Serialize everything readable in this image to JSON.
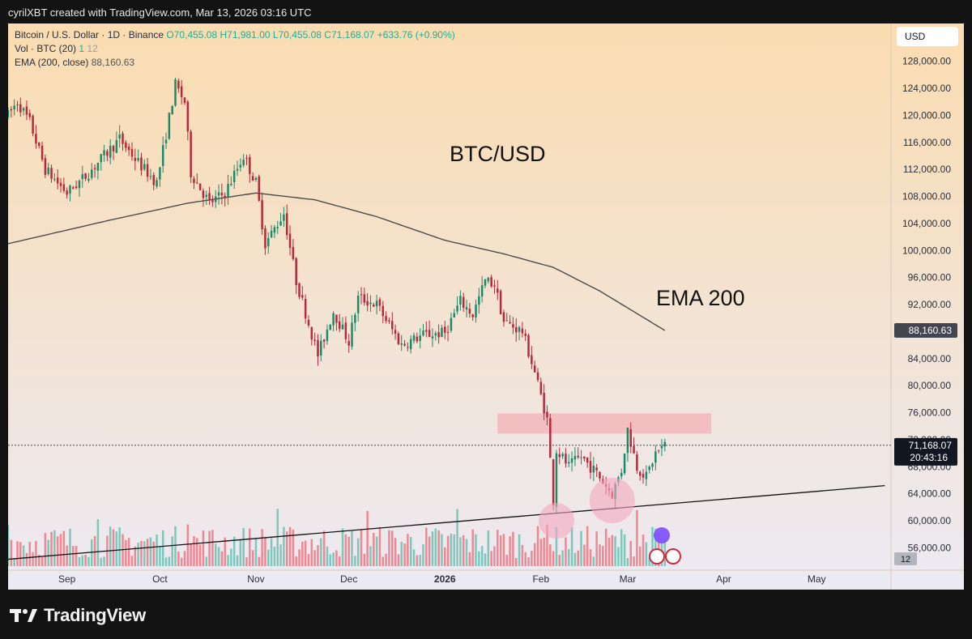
{
  "caption": "cyrilXBT created with TradingView.com, Mar 13, 2026 03:16 UTC",
  "legend": {
    "symbol": "Bitcoin / U.S. Dollar · 1D · Binance",
    "o": "O70,455.08",
    "h": "H71,981.00",
    "l": "L70,455.08",
    "c": "C71,168.07",
    "chg": "+633.76 (+0.90%)",
    "vol_label": "Vol · BTC (20)",
    "vol_val1": "1",
    "vol_val2": "12",
    "ema_label": "EMA (200, close)",
    "ema_val": "88,160.63"
  },
  "currency_label": "USD",
  "footer_brand": "TradingView",
  "colors": {
    "up": "#22ab94",
    "down": "#f23645",
    "candle_up": "#1b8a6b",
    "candle_down": "#b8283a",
    "ema": "#4b4b4b",
    "zone": "#f3a3ab",
    "circle": "#f4a7bf",
    "bg_top": "#fadcb0",
    "bg_bottom": "#eceaf3"
  },
  "chart_data": {
    "type": "candlestick",
    "title": "BTC/USD",
    "annotations": [
      "BTC/USD",
      "EMA 200"
    ],
    "x_ticks": [
      "Sep",
      "Oct",
      "Nov",
      "Dec",
      "2026",
      "Feb",
      "Mar",
      "Apr",
      "May"
    ],
    "y_ticks": [
      "128,000.00",
      "124,000.00",
      "120,000.00",
      "116,000.00",
      "112,000.00",
      "108,000.00",
      "104,000.00",
      "100,000.00",
      "96,000.00",
      "92,000.00",
      "84,000.00",
      "80,000.00",
      "76,000.00",
      "72,000.00",
      "68,000.00",
      "64,000.00",
      "60,000.00",
      "56,000.00"
    ],
    "ylim": [
      53000,
      131000
    ],
    "x_range": [
      "2025-08-13",
      "2026-05-25"
    ],
    "last_price": "71,168.07",
    "countdown": "20:43:16",
    "ema_value_label": "88,160.63",
    "volume_scale_label": "12",
    "resistance_zone": {
      "from": "2026-01-18",
      "to": "2026-03-28",
      "low": 72900,
      "high": 75900
    },
    "support_trendline": [
      {
        "date": "2025-08-13",
        "value": 54300
      },
      {
        "date": "2026-05-23",
        "value": 65200
      }
    ],
    "highlight_lows": [
      {
        "date": "2026-02-06",
        "value": 60000
      },
      {
        "date": "2026-02-24",
        "value": 63000
      }
    ],
    "ema_anchors": [
      {
        "date": "2025-08-13",
        "value": 101000
      },
      {
        "date": "2025-09-15",
        "value": 104500
      },
      {
        "date": "2025-10-10",
        "value": 107000
      },
      {
        "date": "2025-11-01",
        "value": 108500
      },
      {
        "date": "2025-11-20",
        "value": 107500
      },
      {
        "date": "2025-12-10",
        "value": 105000
      },
      {
        "date": "2026-01-01",
        "value": 101500
      },
      {
        "date": "2026-01-20",
        "value": 99500
      },
      {
        "date": "2026-02-05",
        "value": 97500
      },
      {
        "date": "2026-02-20",
        "value": 94000
      },
      {
        "date": "2026-03-13",
        "value": 88160.63
      }
    ],
    "price_anchors": [
      {
        "date": "2025-08-13",
        "value": 120000
      },
      {
        "date": "2025-08-16",
        "value": 122000
      },
      {
        "date": "2025-08-20",
        "value": 119000
      },
      {
        "date": "2025-08-25",
        "value": 112000
      },
      {
        "date": "2025-09-01",
        "value": 108500
      },
      {
        "date": "2025-09-07",
        "value": 111000
      },
      {
        "date": "2025-09-18",
        "value": 116500
      },
      {
        "date": "2025-09-24",
        "value": 113000
      },
      {
        "date": "2025-09-30",
        "value": 110000
      },
      {
        "date": "2025-10-06",
        "value": 124500
      },
      {
        "date": "2025-10-09",
        "value": 122000
      },
      {
        "date": "2025-10-11",
        "value": 111500
      },
      {
        "date": "2025-10-17",
        "value": 107000
      },
      {
        "date": "2025-10-22",
        "value": 108500
      },
      {
        "date": "2025-10-28",
        "value": 114000
      },
      {
        "date": "2025-11-01",
        "value": 110000
      },
      {
        "date": "2025-11-04",
        "value": 101000
      },
      {
        "date": "2025-11-10",
        "value": 105500
      },
      {
        "date": "2025-11-14",
        "value": 95500
      },
      {
        "date": "2025-11-21",
        "value": 84500
      },
      {
        "date": "2025-11-26",
        "value": 91000
      },
      {
        "date": "2025-12-01",
        "value": 86500
      },
      {
        "date": "2025-12-04",
        "value": 93000
      },
      {
        "date": "2025-12-10",
        "value": 92000
      },
      {
        "date": "2025-12-18",
        "value": 86000
      },
      {
        "date": "2025-12-25",
        "value": 87500
      },
      {
        "date": "2026-01-01",
        "value": 87800
      },
      {
        "date": "2026-01-06",
        "value": 92500
      },
      {
        "date": "2026-01-10",
        "value": 90500
      },
      {
        "date": "2026-01-14",
        "value": 95500
      },
      {
        "date": "2026-01-17",
        "value": 95000
      },
      {
        "date": "2026-01-20",
        "value": 89500
      },
      {
        "date": "2026-01-26",
        "value": 88000
      },
      {
        "date": "2026-01-30",
        "value": 82000
      },
      {
        "date": "2026-02-03",
        "value": 75000
      },
      {
        "date": "2026-02-05",
        "value": 63000
      },
      {
        "date": "2026-02-06",
        "value": 70500
      },
      {
        "date": "2026-02-10",
        "value": 68000
      },
      {
        "date": "2026-02-14",
        "value": 69500
      },
      {
        "date": "2026-02-19",
        "value": 67000
      },
      {
        "date": "2026-02-24",
        "value": 64000
      },
      {
        "date": "2026-02-27",
        "value": 67500
      },
      {
        "date": "2026-03-01",
        "value": 73500
      },
      {
        "date": "2026-03-04",
        "value": 68000
      },
      {
        "date": "2026-03-07",
        "value": 66500
      },
      {
        "date": "2026-03-10",
        "value": 70000
      },
      {
        "date": "2026-03-13",
        "value": 71168.07
      }
    ]
  }
}
